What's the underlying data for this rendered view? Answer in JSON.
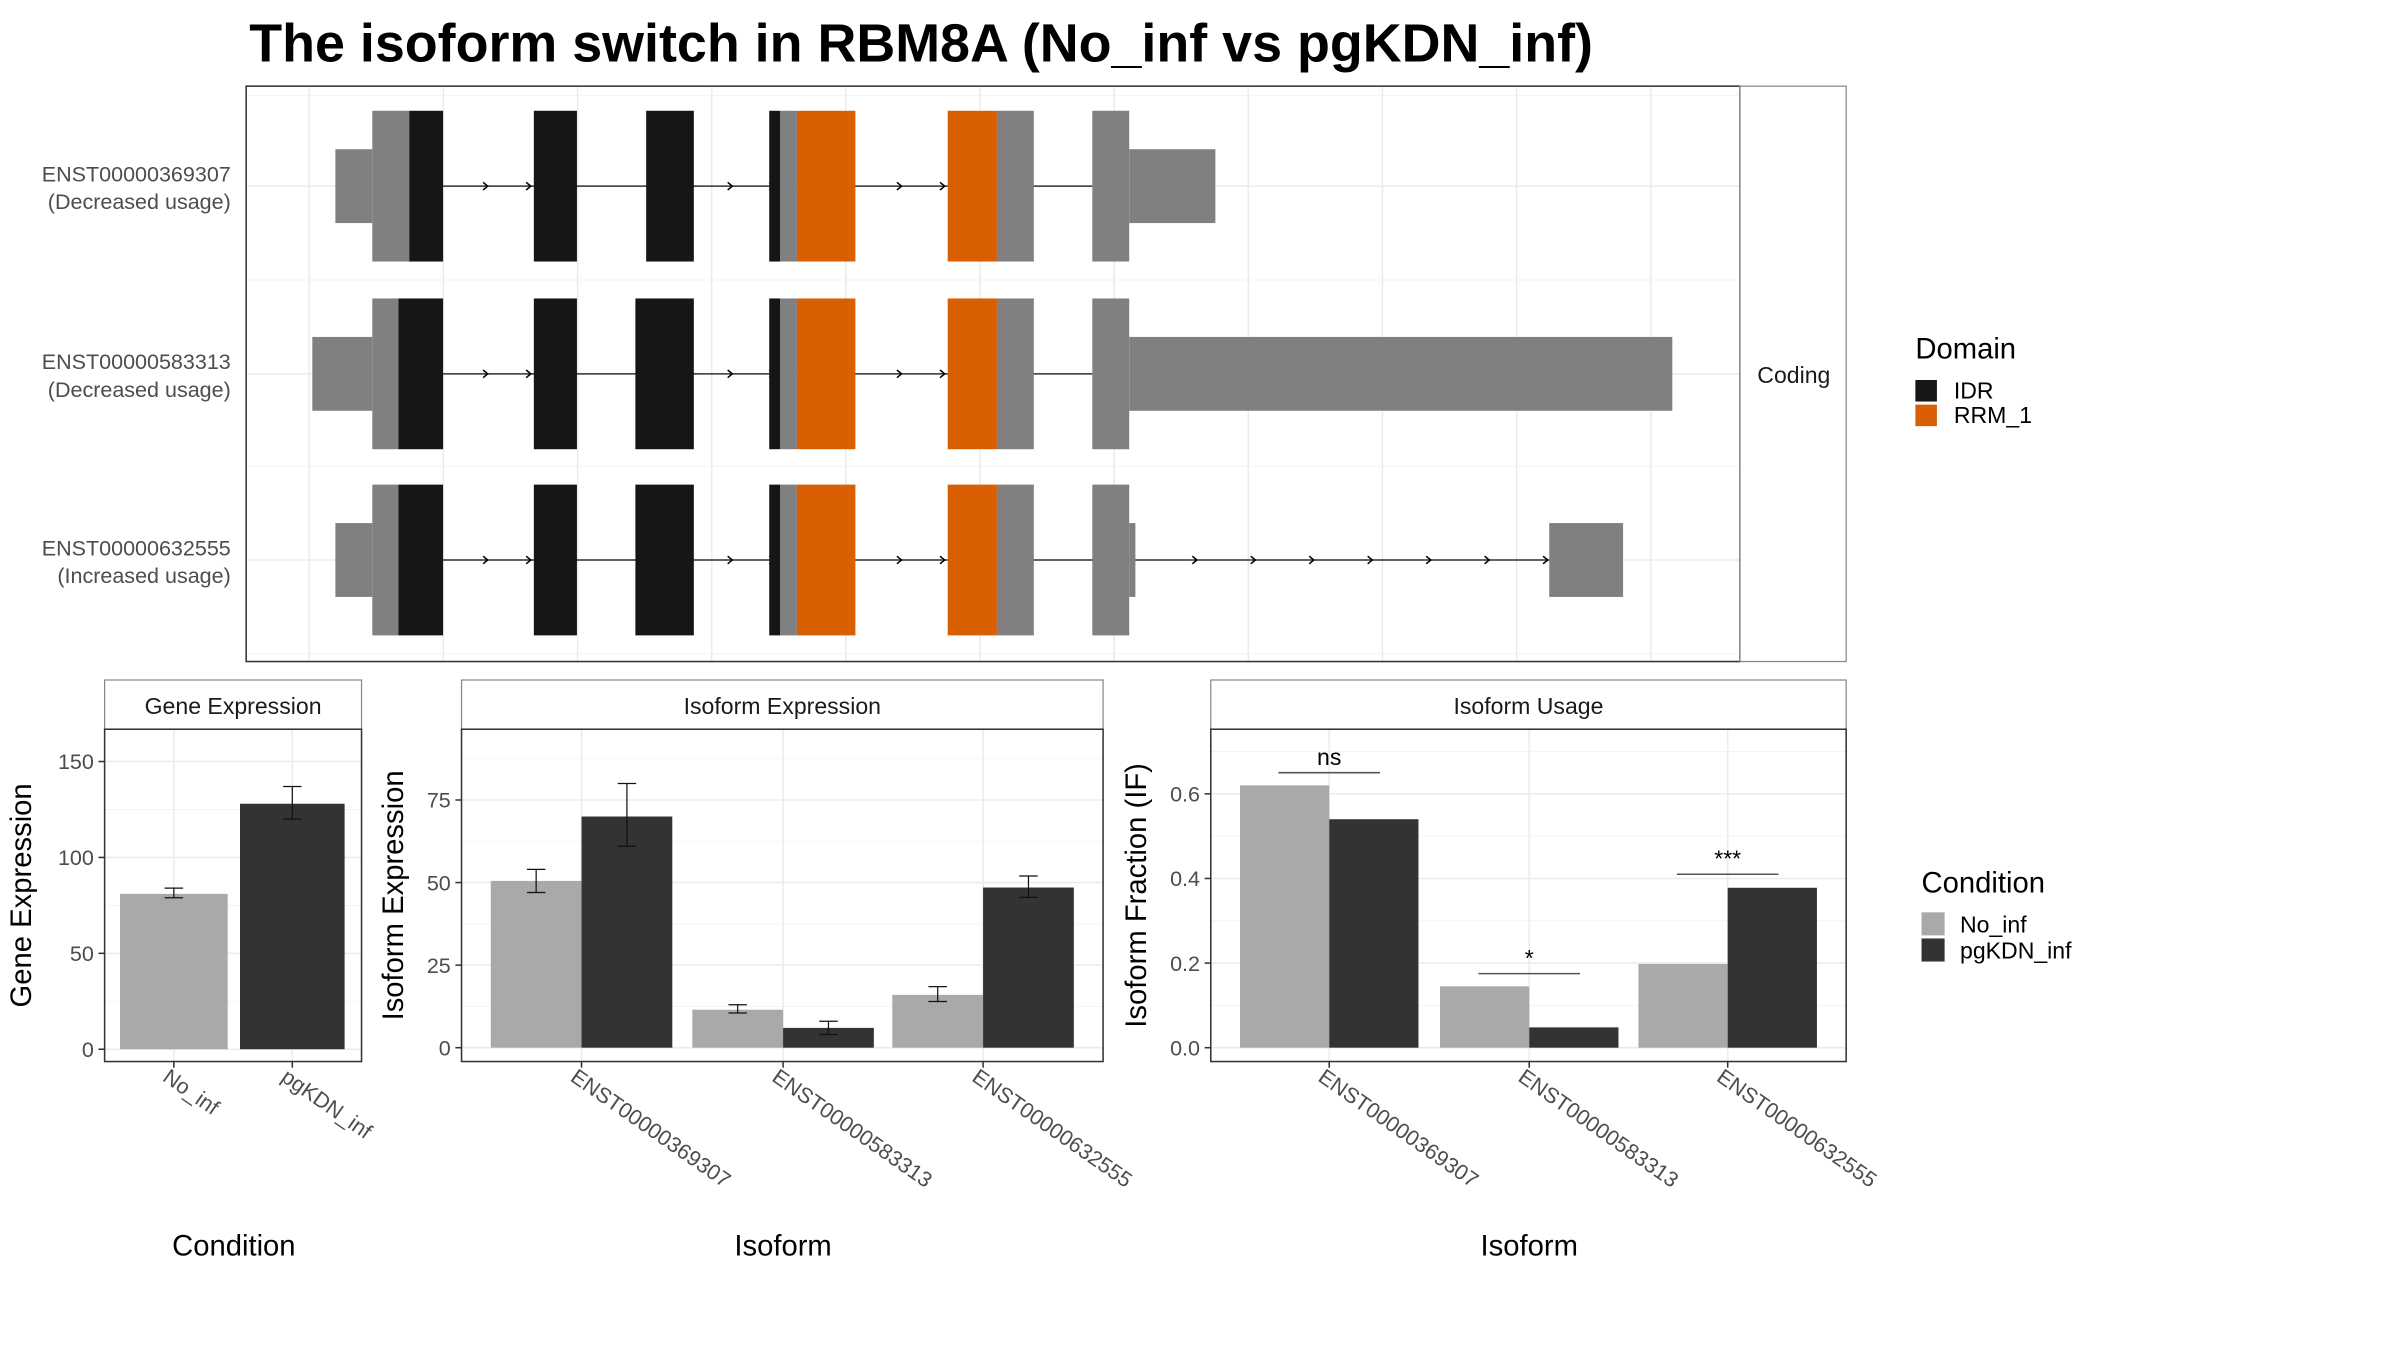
{
  "title": "The isoform switch in RBM8A (No_inf vs pgKDN_inf)",
  "transcripts": [
    {
      "id": "ENST00000369307",
      "usage": "(Decreased usage)"
    },
    {
      "id": "ENST00000583313",
      "usage": "(Decreased usage)"
    },
    {
      "id": "ENST00000632555",
      "usage": "(Increased usage)"
    }
  ],
  "strip_label": "Coding",
  "domain_legend": {
    "title": "Domain",
    "items": [
      {
        "label": "IDR",
        "color": "#161616"
      },
      {
        "label": "RRM_1",
        "color": "#d95f02"
      }
    ]
  },
  "condition_legend": {
    "title": "Condition",
    "items": [
      {
        "label": "No_inf",
        "color": "#a9a9a9"
      },
      {
        "label": "pgKDN_inf",
        "color": "#333333"
      }
    ]
  },
  "chart_data": [
    {
      "type": "bar",
      "title": "Gene Expression",
      "xlabel": "Condition",
      "ylabel": "Gene Expression",
      "categories": [
        "No_inf",
        "pgKDN_inf"
      ],
      "values": [
        81,
        128
      ],
      "errors": [
        [
          79,
          84
        ],
        [
          120,
          137
        ]
      ],
      "yticks": [
        "0",
        "50",
        "100",
        "150"
      ],
      "ylim": [
        0,
        165
      ]
    },
    {
      "type": "bar",
      "title": "Isoform Expression",
      "xlabel": "Isoform",
      "ylabel": "Isoform Expression",
      "categories": [
        "ENST00000369307",
        "ENST00000583313",
        "ENST00000632555"
      ],
      "series": [
        {
          "name": "No_inf",
          "values": [
            50.5,
            11.5,
            16
          ],
          "errors": [
            [
              47,
              54
            ],
            [
              10.5,
              13
            ],
            [
              14,
              18.5
            ]
          ]
        },
        {
          "name": "pgKDN_inf",
          "values": [
            70,
            6,
            48.5
          ],
          "errors": [
            [
              61,
              80
            ],
            [
              4,
              8
            ],
            [
              45.5,
              52
            ]
          ]
        }
      ],
      "yticks": [
        "0",
        "25",
        "50",
        "75"
      ],
      "ylim": [
        0,
        93
      ]
    },
    {
      "type": "bar",
      "title": "Isoform Usage",
      "xlabel": "Isoform",
      "ylabel": "Isoform Fraction (IF)",
      "categories": [
        "ENST00000369307",
        "ENST00000583313",
        "ENST00000632555"
      ],
      "series": [
        {
          "name": "No_inf",
          "values": [
            0.62,
            0.145,
            0.198
          ]
        },
        {
          "name": "pgKDN_inf",
          "values": [
            0.54,
            0.048,
            0.378
          ]
        }
      ],
      "significance": [
        {
          "label": "ns",
          "y": 0.65
        },
        {
          "label": "*",
          "y": 0.175
        },
        {
          "label": "***",
          "y": 0.41
        }
      ],
      "yticks": [
        "0.0",
        "0.2",
        "0.4",
        "0.6"
      ],
      "ylim": [
        0,
        0.75
      ]
    }
  ]
}
